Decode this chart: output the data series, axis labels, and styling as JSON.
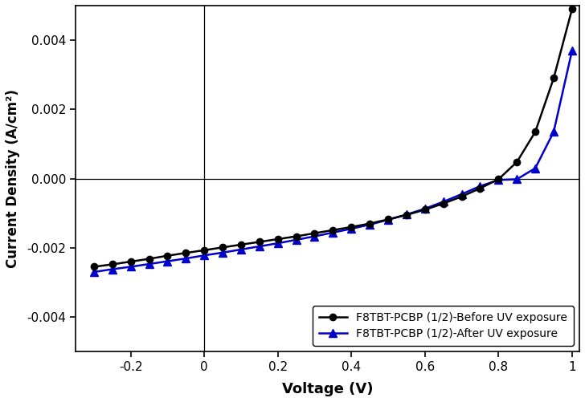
{
  "title": "",
  "xlabel": "Voltage (V)",
  "ylabel": "Current Density (A/cm²)",
  "xlim": [
    -0.35,
    1.02
  ],
  "ylim": [
    -0.005,
    0.005
  ],
  "xticks": [
    -0.2,
    0.0,
    0.2,
    0.4,
    0.6,
    0.8,
    1.0
  ],
  "yticks": [
    -0.004,
    -0.002,
    0.0,
    0.002,
    0.004
  ],
  "before_label": "F8TBT-PCBP (1/2)-Before UV exposure",
  "after_label": "F8TBT-PCBP (1/2)-After UV exposure",
  "before_color": "#000000",
  "after_color": "#0000cc",
  "before_voltage": [
    -0.3,
    -0.25,
    -0.2,
    -0.15,
    -0.1,
    -0.05,
    0.0,
    0.05,
    0.1,
    0.15,
    0.2,
    0.25,
    0.3,
    0.35,
    0.4,
    0.45,
    0.5,
    0.55,
    0.6,
    0.65,
    0.7,
    0.75,
    0.8,
    0.85,
    0.9,
    0.95,
    1.0
  ],
  "before_current": [
    -0.00255,
    -0.00248,
    -0.0024,
    -0.00232,
    -0.00223,
    -0.00215,
    -0.00207,
    -0.00199,
    -0.00191,
    -0.00183,
    -0.00175,
    -0.00167,
    -0.00158,
    -0.00149,
    -0.0014,
    -0.0013,
    -0.00118,
    -0.00105,
    -0.0009,
    -0.00072,
    -0.00052,
    -0.00028,
    -2e-05,
    0.00048,
    0.00135,
    0.0029,
    0.0049
  ],
  "after_voltage": [
    -0.3,
    -0.25,
    -0.2,
    -0.15,
    -0.1,
    -0.05,
    0.0,
    0.05,
    0.1,
    0.15,
    0.2,
    0.25,
    0.3,
    0.35,
    0.4,
    0.45,
    0.5,
    0.55,
    0.6,
    0.65,
    0.7,
    0.75,
    0.8,
    0.85,
    0.9,
    0.95,
    1.0
  ],
  "after_current": [
    -0.0027,
    -0.00262,
    -0.00255,
    -0.00247,
    -0.00239,
    -0.00231,
    -0.00222,
    -0.00214,
    -0.00205,
    -0.00196,
    -0.00187,
    -0.00177,
    -0.00167,
    -0.00156,
    -0.00145,
    -0.00133,
    -0.00119,
    -0.00104,
    -0.00087,
    -0.00067,
    -0.00045,
    -0.00022,
    -4e-05,
    -2e-05,
    0.0003,
    0.00135,
    0.0037
  ]
}
